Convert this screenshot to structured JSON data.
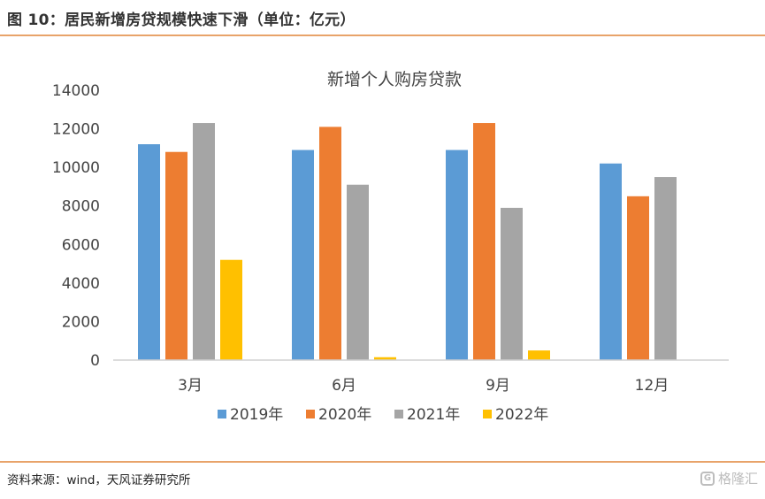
{
  "figure": {
    "title": "图 10：居民新增房贷规模快速下滑（单位：亿元）",
    "source": "资料来源：wind，天风证券研究所",
    "watermark": "格隆汇",
    "watermark_icon": "g-logo-icon"
  },
  "chart_data": {
    "type": "bar",
    "title": "新增个人购房贷款",
    "categories": [
      "3月",
      "6月",
      "9月",
      "12月"
    ],
    "series": [
      {
        "name": "2019年",
        "color": "#5b9bd5",
        "values": [
          11200,
          10900,
          10900,
          10200
        ]
      },
      {
        "name": "2020年",
        "color": "#ed7d31",
        "values": [
          10800,
          12100,
          12300,
          8500
        ]
      },
      {
        "name": "2021年",
        "color": "#a5a5a5",
        "values": [
          12300,
          9100,
          7900,
          9500
        ]
      },
      {
        "name": "2022年",
        "color": "#ffc000",
        "values": [
          5200,
          150,
          500,
          null
        ]
      }
    ],
    "ylim": [
      0,
      14000
    ],
    "yticks": [
      "0",
      "2000",
      "4000",
      "6000",
      "8000",
      "10000",
      "12000",
      "14000"
    ],
    "grid": false,
    "legend": "bottom"
  }
}
